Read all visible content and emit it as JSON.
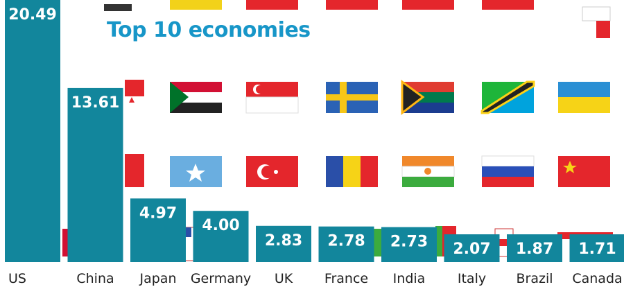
{
  "title": "Top 10 economies",
  "colors": {
    "bar": "#12869c",
    "title": "#1796c8",
    "label": "#222222"
  },
  "background_flags": [
    "sudan-flag",
    "singapore-flag",
    "sweden-flag",
    "south-africa-flag",
    "tanzania-flag",
    "ukraine-flag",
    "somalia-flag",
    "turkey-flag",
    "romania-flag",
    "niger-flag",
    "russia-flag",
    "china-flag"
  ],
  "chart_data": {
    "type": "bar",
    "title": "Top 10 economies",
    "categories": [
      "US",
      "China",
      "Japan",
      "Germany",
      "UK",
      "France",
      "India",
      "Italy",
      "Brazil",
      "Canada"
    ],
    "values": [
      20.49,
      13.61,
      4.97,
      4.0,
      2.83,
      2.78,
      2.73,
      2.07,
      1.87,
      1.71
    ],
    "value_labels": [
      "20.49",
      "13.61",
      "4.97",
      "4.00",
      "2.83",
      "2.78",
      "2.73",
      "2.07",
      "1.87",
      "1.71"
    ],
    "xlabel": "",
    "ylabel": "",
    "ylim": [
      0,
      20.49
    ],
    "grid": false,
    "legend": "none"
  }
}
